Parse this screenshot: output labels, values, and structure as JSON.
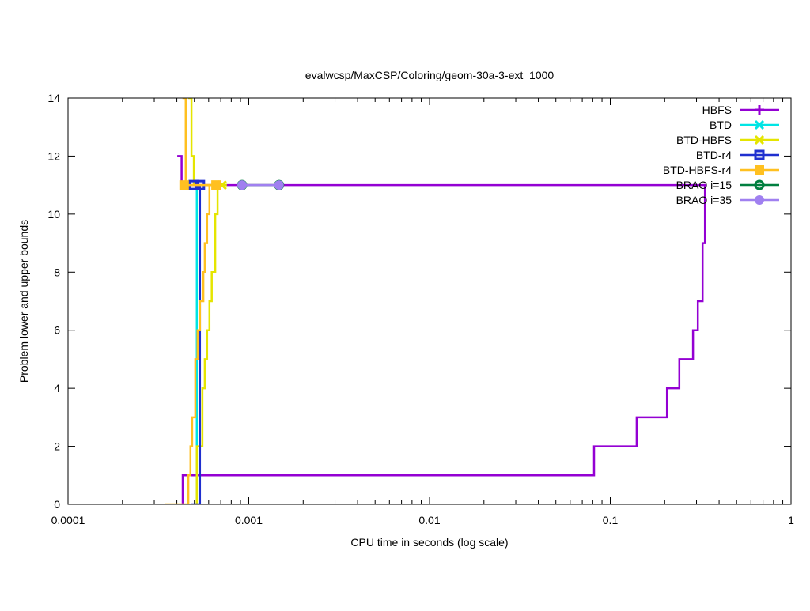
{
  "chart_data": {
    "type": "line",
    "title": "evalwcsp/MaxCSP/Coloring/geom-30a-3-ext_1000",
    "xlabel": "CPU time in seconds (log scale)",
    "ylabel": "Problem lower and upper bounds",
    "xscale": "log",
    "xlim": [
      0.0001,
      1
    ],
    "ylim": [
      0,
      14
    ],
    "x_ticks": [
      0.0001,
      0.001,
      0.01,
      0.1,
      1
    ],
    "x_tick_labels": [
      "0.0001",
      "0.001",
      "0.01",
      "0.1",
      "1"
    ],
    "y_ticks": [
      0,
      2,
      4,
      6,
      8,
      10,
      12,
      14
    ],
    "y_tick_labels": [
      "0",
      "2",
      "4",
      "6",
      "8",
      "10",
      "12",
      "14"
    ],
    "grid": false,
    "legend_position": "top-right",
    "series": [
      {
        "name": "HBFS",
        "color": "#9400d3",
        "marker": "plus",
        "upper": [
          [
            0.000402,
            12
          ],
          [
            0.000425,
            11
          ],
          [
            0.337,
            11
          ]
        ],
        "lower": [
          [
            0.000431,
            0
          ],
          [
            0.000431,
            1
          ],
          [
            0.0813,
            2
          ],
          [
            0.14,
            3
          ],
          [
            0.206,
            4
          ],
          [
            0.241,
            5
          ],
          [
            0.287,
            6
          ],
          [
            0.305,
            7
          ],
          [
            0.324,
            9
          ],
          [
            0.334,
            11
          ],
          [
            0.337,
            11
          ]
        ],
        "markers": []
      },
      {
        "name": "BTD",
        "color": "#00e5e5",
        "marker": "cross",
        "upper": [
          [
            0.000516,
            11
          ],
          [
            0.000516,
            11
          ]
        ],
        "lower": [
          [
            0.000516,
            0
          ],
          [
            0.000516,
            11
          ]
        ],
        "markers": []
      },
      {
        "name": "BTD-HBFS",
        "color": "#e5e500",
        "marker": "star",
        "upper": [
          [
            0.000463,
            14
          ],
          [
            0.000482,
            12
          ],
          [
            0.000497,
            11
          ],
          [
            0.000712,
            11
          ]
        ],
        "lower": [
          [
            0.000516,
            0
          ],
          [
            0.000516,
            2
          ],
          [
            0.000554,
            4
          ],
          [
            0.000571,
            5
          ],
          [
            0.000588,
            6
          ],
          [
            0.000606,
            7
          ],
          [
            0.000624,
            8
          ],
          [
            0.000652,
            10
          ],
          [
            0.000672,
            11
          ],
          [
            0.000712,
            11
          ]
        ],
        "markers": [
          [
            0.000712,
            11
          ]
        ]
      },
      {
        "name": "BTD-r4",
        "color": "#1f2fcf",
        "marker": "open-square",
        "upper": [
          [
            0.000496,
            11
          ],
          [
            0.000537,
            11
          ]
        ],
        "lower": [
          [
            0.00048,
            0
          ],
          [
            0.000537,
            0
          ],
          [
            0.000537,
            11
          ]
        ],
        "markers": [
          [
            0.000496,
            11
          ],
          [
            0.000537,
            11
          ]
        ]
      },
      {
        "name": "BTD-HBFS-r4",
        "color": "#ffc020",
        "marker": "filled-square",
        "upper": [
          [
            0.00043,
            14
          ],
          [
            0.000448,
            11
          ],
          [
            0.000659,
            11
          ]
        ],
        "lower": [
          [
            0.000342,
            0
          ],
          [
            0.000463,
            1
          ],
          [
            0.000476,
            2
          ],
          [
            0.000486,
            3
          ],
          [
            0.000506,
            5
          ],
          [
            0.000521,
            6
          ],
          [
            0.000537,
            7
          ],
          [
            0.000561,
            8
          ],
          [
            0.000571,
            9
          ],
          [
            0.000588,
            10
          ],
          [
            0.000606,
            11
          ],
          [
            0.000659,
            11
          ]
        ],
        "markers": [
          [
            0.000439,
            11
          ],
          [
            0.000659,
            11
          ]
        ]
      },
      {
        "name": "BRAO i=15",
        "color": "#007f3f",
        "marker": "dot-circle",
        "upper": [
          [
            0.000918,
            11
          ],
          [
            0.00147,
            11
          ]
        ],
        "lower": [],
        "markers": [
          [
            0.000918,
            11
          ],
          [
            0.00147,
            11
          ]
        ]
      },
      {
        "name": "BRAO i=35",
        "color": "#a080f0",
        "marker": "filled-circle",
        "upper": [
          [
            0.000918,
            11
          ],
          [
            0.00147,
            11
          ]
        ],
        "lower": [],
        "markers": [
          [
            0.000918,
            11
          ],
          [
            0.00147,
            11
          ]
        ]
      }
    ]
  }
}
